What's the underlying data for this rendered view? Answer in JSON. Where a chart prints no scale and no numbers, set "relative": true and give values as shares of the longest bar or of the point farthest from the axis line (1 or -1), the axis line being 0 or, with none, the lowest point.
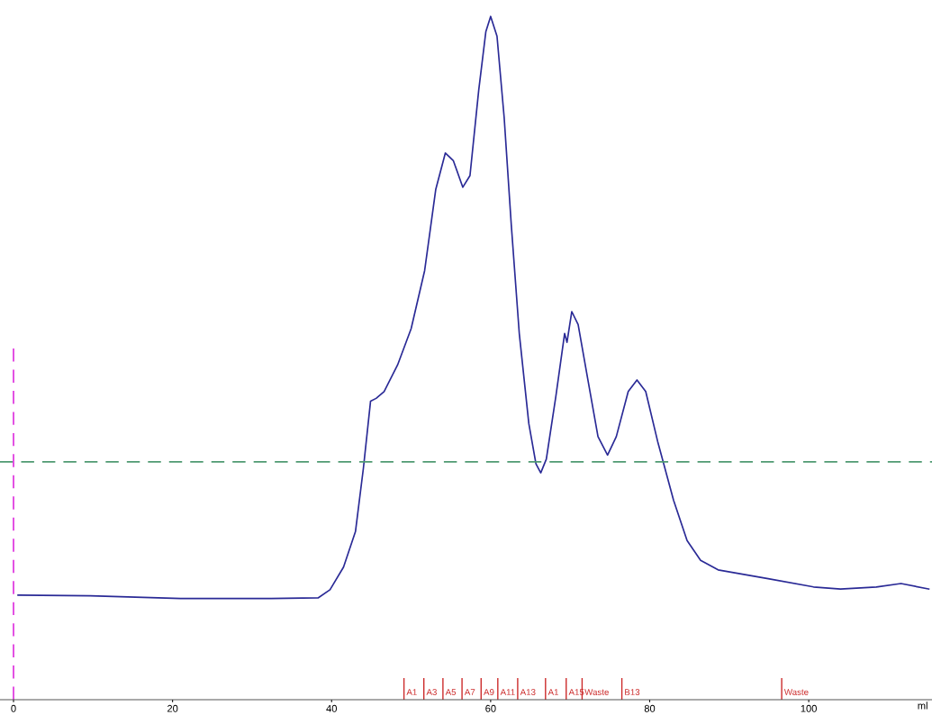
{
  "chart_data": {
    "type": "line",
    "relative": true,
    "xlabel": "ml",
    "xlim": [
      -1.7,
      115.5
    ],
    "xticks": [
      0,
      20,
      40,
      60,
      80,
      100
    ],
    "tick_labels": "x",
    "grid": false,
    "legend": false,
    "marker": "none",
    "line_style": "solid",
    "series": [
      {
        "color": "#2a2a96",
        "x": [
          0.57,
          9.66,
          21.0,
          32.4,
          38.3,
          39.8,
          41.5,
          43.0,
          44.0,
          44.9,
          45.6,
          46.6,
          48.3,
          50.0,
          51.7,
          53.1,
          54.3,
          55.3,
          56.5,
          57.4,
          58.5,
          59.4,
          60.0,
          60.8,
          61.7,
          62.6,
          63.6,
          64.8,
          65.7,
          66.3,
          67.0,
          68.2,
          69.3,
          69.6,
          70.2,
          71.0,
          72.2,
          73.5,
          74.7,
          75.8,
          77.3,
          78.4,
          79.5,
          81.0,
          83.0,
          84.7,
          86.4,
          88.6,
          94.9,
          100.6,
          104.0,
          108.5,
          111.6,
          115.1
        ],
        "values": [
          0.153,
          0.152,
          0.148,
          0.148,
          0.149,
          0.161,
          0.194,
          0.246,
          0.339,
          0.437,
          0.441,
          0.451,
          0.49,
          0.543,
          0.628,
          0.747,
          0.8,
          0.789,
          0.75,
          0.767,
          0.892,
          0.978,
          1.0,
          0.971,
          0.852,
          0.694,
          0.536,
          0.404,
          0.345,
          0.332,
          0.352,
          0.444,
          0.536,
          0.523,
          0.568,
          0.549,
          0.47,
          0.385,
          0.358,
          0.385,
          0.451,
          0.468,
          0.451,
          0.378,
          0.292,
          0.233,
          0.204,
          0.19,
          0.177,
          0.165,
          0.162,
          0.165,
          0.17,
          0.162
        ]
      }
    ],
    "ref_lines": [
      {
        "axis": "y",
        "value": 0.348,
        "color": "#4f9a72",
        "line_style": "dashed"
      },
      {
        "axis": "x",
        "value": 0,
        "color": "#e040e0",
        "line_style": "dashed"
      },
      {
        "axis": "x",
        "value": 49.1,
        "label": "A1",
        "color": "#cc2a2a",
        "line_style": "solid"
      },
      {
        "axis": "x",
        "value": 51.6,
        "label": "A3",
        "color": "#cc2a2a",
        "line_style": "solid"
      },
      {
        "axis": "x",
        "value": 54.0,
        "label": "A5",
        "color": "#cc2a2a",
        "line_style": "solid"
      },
      {
        "axis": "x",
        "value": 56.4,
        "label": "A7",
        "color": "#cc2a2a",
        "line_style": "solid"
      },
      {
        "axis": "x",
        "value": 58.8,
        "label": "A9",
        "color": "#cc2a2a",
        "line_style": "solid"
      },
      {
        "axis": "x",
        "value": 60.9,
        "label": "A11",
        "color": "#cc2a2a",
        "line_style": "solid"
      },
      {
        "axis": "x",
        "value": 63.4,
        "label": "A13",
        "color": "#cc2a2a",
        "line_style": "solid"
      },
      {
        "axis": "x",
        "value": 66.9,
        "label": "A1",
        "color": "#cc2a2a",
        "line_style": "solid"
      },
      {
        "axis": "x",
        "value": 69.5,
        "label": "A15",
        "color": "#cc2a2a",
        "line_style": "solid"
      },
      {
        "axis": "x",
        "value": 71.5,
        "label": "Waste",
        "color": "#cc2a2a",
        "line_style": "solid"
      },
      {
        "axis": "x",
        "value": 76.5,
        "label": "B13",
        "color": "#cc2a2a",
        "line_style": "solid"
      },
      {
        "axis": "x",
        "value": 96.6,
        "label": "Waste",
        "color": "#cc2a2a",
        "line_style": "solid"
      }
    ]
  }
}
